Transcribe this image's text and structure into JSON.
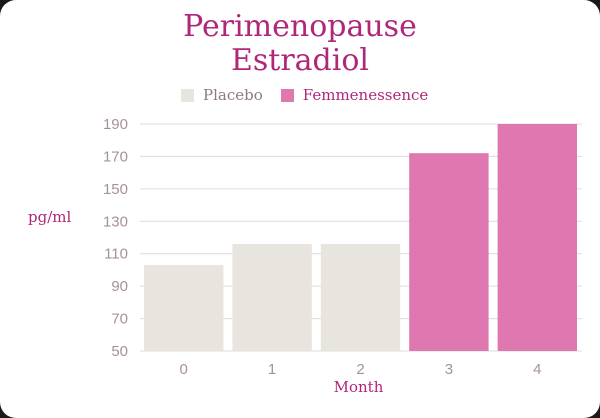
{
  "chart_data": {
    "type": "bar",
    "title": "Perimenopause Estradiol",
    "title_lines": [
      "Perimenopause",
      "Estradiol"
    ],
    "xlabel": "Month",
    "ylabel": "pg/ml",
    "categories": [
      "0",
      "1",
      "2",
      "3",
      "4"
    ],
    "values": [
      103,
      116,
      116,
      172,
      190
    ],
    "bar_groups": [
      "Placebo",
      "Placebo",
      "Placebo",
      "Femmenessence",
      "Femmenessence"
    ],
    "ylim": [
      50,
      190
    ],
    "yticks": [
      50,
      70,
      90,
      110,
      130,
      150,
      170,
      190
    ],
    "grid": true,
    "legend_position": "top",
    "legend": [
      {
        "name": "Placebo",
        "color": "#e8e4de"
      },
      {
        "name": "Femmenessence",
        "color": "#df77b0"
      }
    ]
  },
  "colors": {
    "title": "#b0277a",
    "placebo": "#e8e4de",
    "femmenessence": "#df77b0",
    "grid": "#dcdcdc",
    "tick": "#a8909a"
  }
}
